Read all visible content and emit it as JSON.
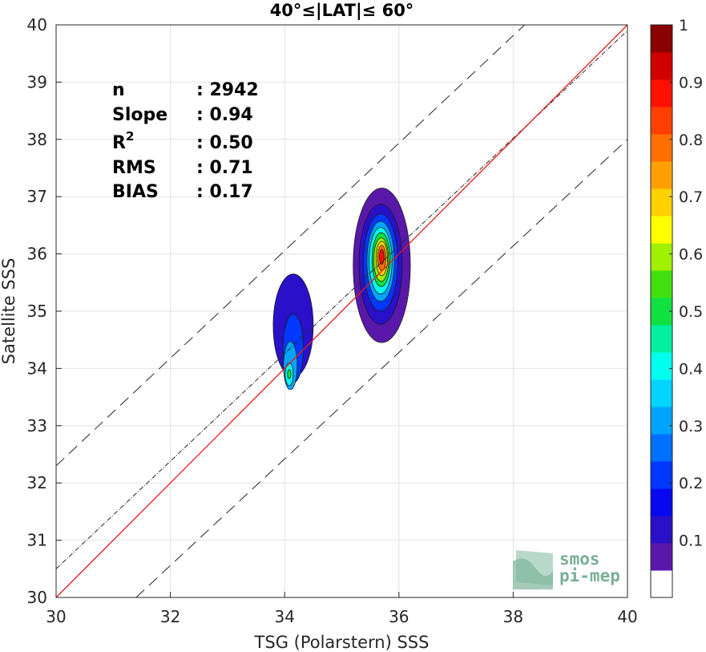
{
  "chart_data": {
    "type": "contour-scatter",
    "title": "40°≤|LAT|≤ 60°",
    "xlabel": "TSG (Polarstern) SSS",
    "ylabel": "Satellite SSS",
    "xlim": [
      30,
      40
    ],
    "ylim": [
      30,
      40
    ],
    "xticks": [
      "30",
      "32",
      "34",
      "36",
      "38",
      "40"
    ],
    "yticks": [
      "30",
      "31",
      "32",
      "33",
      "34",
      "35",
      "36",
      "37",
      "38",
      "39",
      "40"
    ],
    "grid": true,
    "stats": [
      {
        "label": "n",
        "value": ": 2942"
      },
      {
        "label": "Slope",
        "value": ": 0.94"
      },
      {
        "label": "R",
        "sup": "2",
        "value": ": 0.50"
      },
      {
        "label": "RMS",
        "value": ": 0.71"
      },
      {
        "label": "BIAS",
        "value": ": 0.17"
      }
    ],
    "reference_lines": {
      "one_to_one": {
        "color": "#e41a1c",
        "points": [
          [
            30,
            30
          ],
          [
            40,
            40
          ]
        ]
      },
      "regression": {
        "slope": 0.94,
        "points": [
          [
            30,
            30.5
          ],
          [
            40,
            39.9
          ]
        ]
      },
      "plus_one_rms": {
        "points": [
          [
            30,
            32.3
          ],
          [
            38.2,
            40
          ]
        ]
      },
      "minus_one_rms": {
        "points": [
          [
            31.4,
            30
          ],
          [
            40,
            38
          ]
        ]
      }
    },
    "density_clusters": [
      {
        "levels": [
          {
            "level": 0.05,
            "cx": 35.7,
            "cy": 35.8,
            "rx": 0.5,
            "ry": 1.35
          },
          {
            "level": 0.1,
            "cx": 35.68,
            "cy": 35.82,
            "rx": 0.38,
            "ry": 1.05
          },
          {
            "level": 0.2,
            "cx": 35.68,
            "cy": 35.85,
            "rx": 0.3,
            "ry": 0.85
          },
          {
            "level": 0.3,
            "cx": 35.68,
            "cy": 35.87,
            "rx": 0.24,
            "ry": 0.7
          },
          {
            "level": 0.4,
            "cx": 35.68,
            "cy": 35.88,
            "rx": 0.2,
            "ry": 0.58
          },
          {
            "level": 0.5,
            "cx": 35.69,
            "cy": 35.9,
            "rx": 0.16,
            "ry": 0.47
          },
          {
            "level": 0.6,
            "cx": 35.69,
            "cy": 35.9,
            "rx": 0.13,
            "ry": 0.38
          },
          {
            "level": 0.7,
            "cx": 35.7,
            "cy": 35.92,
            "rx": 0.1,
            "ry": 0.3
          },
          {
            "level": 0.8,
            "cx": 35.7,
            "cy": 35.93,
            "rx": 0.07,
            "ry": 0.22
          },
          {
            "level": 0.9,
            "cx": 35.7,
            "cy": 35.95,
            "rx": 0.04,
            "ry": 0.13
          }
        ]
      },
      {
        "levels": [
          {
            "level": 0.1,
            "cx": 34.15,
            "cy": 34.75,
            "rx": 0.35,
            "ry": 0.9
          },
          {
            "level": 0.2,
            "cx": 34.15,
            "cy": 34.35,
            "rx": 0.18,
            "ry": 0.6
          },
          {
            "level": 0.3,
            "cx": 34.1,
            "cy": 34.05,
            "rx": 0.12,
            "ry": 0.42
          },
          {
            "level": 0.4,
            "cx": 34.08,
            "cy": 33.9,
            "rx": 0.07,
            "ry": 0.2
          },
          {
            "level": 0.5,
            "cx": 34.08,
            "cy": 33.9,
            "rx": 0.03,
            "ry": 0.08
          }
        ]
      }
    ],
    "colorbar": {
      "min": 0,
      "max": 1,
      "step": 0.05,
      "tick_labels": [
        "0.1",
        "0.2",
        "0.3",
        "0.4",
        "0.5",
        "0.6",
        "0.7",
        "0.8",
        "0.9",
        "1"
      ],
      "tick_values": [
        0.1,
        0.2,
        0.3,
        0.4,
        0.5,
        0.6,
        0.7,
        0.8,
        0.9,
        1.0
      ],
      "colors": [
        "#ffffff",
        "#5a18aa",
        "#2a10c8",
        "#0808f0",
        "#0038ff",
        "#0070ff",
        "#00a4ff",
        "#00d4ff",
        "#00ffee",
        "#00f0a0",
        "#10e040",
        "#40e010",
        "#a0f000",
        "#ffff00",
        "#ffd000",
        "#ffa000",
        "#ff7000",
        "#ff4000",
        "#ff1000",
        "#d00000",
        "#8b0000"
      ]
    }
  },
  "watermark": {
    "line1": "smos",
    "line2": "pi-mep"
  }
}
